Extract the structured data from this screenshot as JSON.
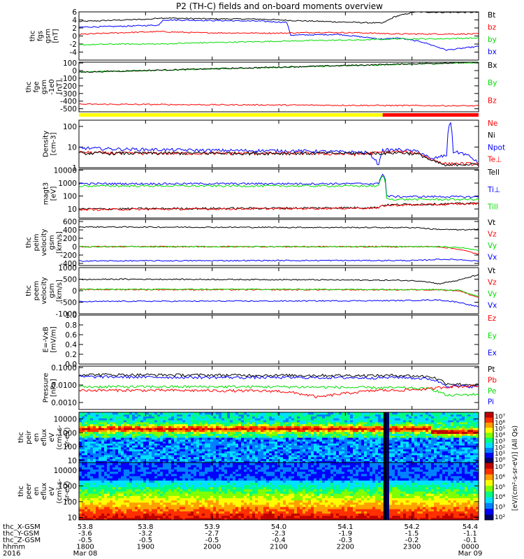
{
  "title": "P2 (TH-C) fields and on-board moments overview",
  "colors": {
    "black": "#000000",
    "red": "#ff0000",
    "green": "#00dd00",
    "blue": "#0000ff",
    "bar_yellow": "#ffff00",
    "bar_red": "#ff0000"
  },
  "chart_data": [
    {
      "id": "p1",
      "type": "line",
      "ylabel": [
        "thc",
        "fgs",
        "gsm",
        "[nT]"
      ],
      "ylim": [
        -6,
        6
      ],
      "ticks": [
        "6",
        "4",
        "2",
        "0",
        "-2",
        "-4"
      ],
      "legend": [
        {
          "label": "Bt",
          "color": "#000000"
        },
        {
          "label": "bz",
          "color": "#ff0000"
        },
        {
          "label": "by",
          "color": "#00dd00"
        },
        {
          "label": "bx",
          "color": "#0000ff"
        }
      ],
      "series": [
        {
          "color": "#000000",
          "x": [
            0,
            0.08,
            0.18,
            0.2,
            0.3,
            0.45,
            0.55,
            0.65,
            0.76,
            0.79,
            0.84,
            0.9,
            1
          ],
          "y": [
            3.6,
            3.9,
            4.2,
            4.5,
            4.3,
            4.2,
            3.8,
            3.5,
            3.2,
            4.8,
            6.0,
            5.9,
            5.9
          ]
        },
        {
          "color": "#0000ff",
          "x": [
            0,
            0.1,
            0.2,
            0.21,
            0.3,
            0.45,
            0.52,
            0.53,
            0.65,
            0.76,
            0.8,
            0.86,
            0.92,
            1
          ],
          "y": [
            2.2,
            2.4,
            2.7,
            4.0,
            3.9,
            3.7,
            3.4,
            0.2,
            0.4,
            -0.8,
            -0.5,
            -1.5,
            -3.5,
            -2.6
          ]
        },
        {
          "color": "#ff0000",
          "x": [
            0,
            0.1,
            0.2,
            0.3,
            0.5,
            0.6,
            0.7,
            0.8,
            0.9,
            1
          ],
          "y": [
            0.4,
            0.8,
            1.1,
            0.8,
            0.7,
            0.9,
            0.8,
            0.5,
            0.5,
            0.5
          ]
        },
        {
          "color": "#00dd00",
          "x": [
            0,
            0.1,
            0.2,
            0.3,
            0.4,
            0.5,
            0.6,
            0.7,
            0.8,
            0.9,
            1
          ],
          "y": [
            -2.2,
            -2.0,
            -2.0,
            -1.7,
            -1.5,
            -1.3,
            -1.1,
            -1.0,
            -0.7,
            -0.7,
            -0.5
          ]
        }
      ]
    },
    {
      "id": "p2",
      "type": "line",
      "ylabel": [
        "thc",
        "fge",
        "gsm",
        "-1e0",
        "[nT]"
      ],
      "ylim": [
        -540,
        110
      ],
      "ticks": [
        "100",
        "0",
        "-100",
        "-200",
        "-300",
        "-400",
        "-500"
      ],
      "legend": [
        {
          "label": "Bx",
          "color": "#000000"
        },
        {
          "label": "By",
          "color": "#00dd00"
        },
        {
          "label": "Bz",
          "color": "#ff0000"
        }
      ],
      "series": [
        {
          "color": "#00dd00",
          "x": [
            0,
            1
          ],
          "y": [
            -20,
            105
          ]
        },
        {
          "color": "#000000",
          "x": [
            0,
            1
          ],
          "y": [
            -20,
            110
          ]
        },
        {
          "color": "#ff0000",
          "x": [
            0,
            1
          ],
          "y": [
            -440,
            -462
          ]
        }
      ]
    },
    {
      "id": "bar",
      "type": "bar",
      "segments": [
        {
          "from": 0,
          "to": 0.76,
          "color": "#ffff00"
        },
        {
          "from": 0.76,
          "to": 1,
          "color": "#ff0000"
        }
      ]
    },
    {
      "id": "p3",
      "type": "line",
      "log": true,
      "ylabel": [
        "Density",
        "[cm-3]"
      ],
      "ylim": [
        1,
        200
      ],
      "ticks": [
        "100",
        "10",
        "1"
      ],
      "legend": [
        {
          "label": "Ne",
          "color": "#ff0000"
        },
        {
          "label": "Ni",
          "color": "#000000"
        },
        {
          "label": "Npot",
          "color": "#0000ff"
        },
        {
          "label": "Te⊥",
          "color": "#ff0000"
        }
      ],
      "series": [
        {
          "color": "#0000ff",
          "x": [
            0,
            0.1,
            0.3,
            0.55,
            0.72,
            0.75,
            0.76,
            0.8,
            0.85,
            0.88,
            0.92,
            0.93,
            0.935,
            0.96,
            1
          ],
          "y": [
            9,
            8,
            7,
            6.5,
            5.5,
            1.2,
            7,
            7.5,
            6,
            2.5,
            4,
            150,
            6,
            5,
            1.5
          ]
        },
        {
          "color": "#ff0000",
          "x": [
            0,
            0.1,
            0.3,
            0.55,
            0.7,
            0.76,
            0.8,
            0.85,
            0.88,
            0.92,
            0.95,
            1
          ],
          "y": [
            5.5,
            5,
            5,
            5,
            4.5,
            5.5,
            6,
            5,
            2.5,
            1.5,
            1.6,
            1.5
          ]
        },
        {
          "color": "#000000",
          "x": [
            0.76,
            0.8,
            0.85,
            0.88,
            0.92,
            0.95,
            1
          ],
          "y": [
            5,
            5.5,
            4.5,
            2.2,
            1.2,
            1.5,
            1.4
          ]
        }
      ]
    },
    {
      "id": "p4",
      "type": "line",
      "log": true,
      "ylabel": [
        "magt3",
        "[eV]"
      ],
      "ylim": [
        2,
        12000
      ],
      "ticks": [
        "10000",
        "1000",
        "100",
        "10"
      ],
      "legend": [
        {
          "label": "Tell",
          "color": "#000000"
        },
        {
          "label": "Ti⊥",
          "color": "#0000ff"
        },
        {
          "label": "Till",
          "color": "#00dd00"
        }
      ],
      "series": [
        {
          "color": "#0000ff",
          "x": [
            0,
            0.75,
            0.76,
            0.77,
            0.8,
            0.9,
            1
          ],
          "y": [
            900,
            900,
            5000,
            100,
            90,
            90,
            85
          ]
        },
        {
          "color": "#00dd00",
          "x": [
            0,
            0.75,
            0.76,
            0.77,
            0.8,
            0.9,
            1
          ],
          "y": [
            600,
            600,
            3500,
            60,
            55,
            55,
            55
          ]
        },
        {
          "color": "#000000",
          "x": [
            0,
            0.3,
            0.6,
            0.75,
            0.76,
            0.8,
            0.9,
            1
          ],
          "y": [
            10,
            11,
            12,
            13,
            20,
            22,
            24,
            28
          ]
        },
        {
          "color": "#ff0000",
          "x": [
            0,
            0.3,
            0.6,
            0.75,
            0.76,
            0.8,
            0.9,
            1
          ],
          "y": [
            9,
            10,
            11,
            12,
            18,
            20,
            22,
            26
          ]
        }
      ]
    },
    {
      "id": "p5",
      "type": "line",
      "ylabel": [
        "thc",
        "peim",
        "velocity",
        "gsm",
        "[km/s]"
      ],
      "ylim": [
        -450,
        650
      ],
      "ticks": [
        "600",
        "400",
        "200",
        "0",
        "-200",
        "-400"
      ],
      "legend": [
        {
          "label": "Vt",
          "color": "#000000"
        },
        {
          "label": "Vz",
          "color": "#ff0000"
        },
        {
          "label": "Vy",
          "color": "#00dd00"
        },
        {
          "label": "Vx",
          "color": "#0000ff"
        }
      ],
      "series": [
        {
          "color": "#000000",
          "x": [
            0,
            0.05,
            0.5,
            0.85,
            0.88,
            0.95,
            1
          ],
          "y": [
            470,
            470,
            460,
            455,
            420,
            400,
            410
          ]
        },
        {
          "color": "#0000ff",
          "x": [
            0,
            0.05,
            0.5,
            0.85,
            0.9,
            0.95,
            1
          ],
          "y": [
            -340,
            -340,
            -330,
            -330,
            -300,
            -310,
            -340
          ]
        },
        {
          "color": "#ff0000",
          "x": [
            0,
            0.5,
            0.9,
            0.95,
            1
          ],
          "y": [
            0,
            0,
            0,
            -60,
            -180
          ]
        },
        {
          "color": "#00dd00",
          "x": [
            0,
            0.5,
            0.9,
            0.95,
            1
          ],
          "y": [
            0,
            0,
            0,
            -20,
            -80
          ]
        }
      ]
    },
    {
      "id": "p6",
      "type": "line",
      "ylabel": [
        "thc",
        "peem",
        "velocity",
        "gsm",
        "[km/s]"
      ],
      "ylim": [
        -1000,
        1000
      ],
      "ticks": [
        "1000",
        "500",
        "0",
        "-500",
        "-1000"
      ],
      "legend": [
        {
          "label": "Vt",
          "color": "#000000"
        },
        {
          "label": "Vz",
          "color": "#ff0000"
        },
        {
          "label": "Vy",
          "color": "#00dd00"
        },
        {
          "label": "Vx",
          "color": "#0000ff"
        }
      ],
      "series": [
        {
          "color": "#000000",
          "x": [
            0,
            0.1,
            0.5,
            0.8,
            0.86,
            0.9,
            0.95,
            1
          ],
          "y": [
            480,
            500,
            480,
            450,
            420,
            300,
            450,
            700
          ]
        },
        {
          "color": "#0000ff",
          "x": [
            0,
            0.1,
            0.5,
            0.8,
            0.9,
            0.95,
            1
          ],
          "y": [
            -480,
            -460,
            -450,
            -430,
            -400,
            -500,
            -700
          ]
        },
        {
          "color": "#ff0000",
          "x": [
            0,
            0.5,
            0.9,
            0.95,
            1
          ],
          "y": [
            50,
            40,
            40,
            0,
            -300
          ]
        },
        {
          "color": "#00dd00",
          "x": [
            0,
            0.5,
            0.9,
            0.95,
            1
          ],
          "y": [
            60,
            60,
            50,
            20,
            -250
          ]
        }
      ]
    },
    {
      "id": "p7",
      "type": "line",
      "ylabel": [
        "E=-VxB",
        "[mV/m]"
      ],
      "ylim": [
        0,
        1
      ],
      "ticks": [
        "1.0",
        "0.8",
        "0.6",
        "0.4",
        "0.2",
        "0.0"
      ],
      "legend": [
        {
          "label": "Ez",
          "color": "#ff0000"
        },
        {
          "label": "Ey",
          "color": "#00dd00"
        },
        {
          "label": "Ex",
          "color": "#0000ff"
        }
      ],
      "series": []
    },
    {
      "id": "p8",
      "type": "line",
      "log": true,
      "ylabel": [
        "Pressure",
        "[nPa]"
      ],
      "ylim": [
        0.0004,
        0.12
      ],
      "ticks": [
        "0.1000",
        "0.0100",
        "0.0010"
      ],
      "legend": [
        {
          "label": "Pt",
          "color": "#000000"
        },
        {
          "label": "Pb",
          "color": "#ff0000"
        },
        {
          "label": "Pe",
          "color": "#00dd00"
        },
        {
          "label": "Pi",
          "color": "#0000ff"
        }
      ],
      "series": [
        {
          "color": "#000000",
          "x": [
            0,
            0.2,
            0.5,
            0.75,
            0.8,
            0.88,
            0.92,
            1
          ],
          "y": [
            0.04,
            0.038,
            0.036,
            0.035,
            0.036,
            0.03,
            0.012,
            0.01
          ]
        },
        {
          "color": "#0000ff",
          "x": [
            0,
            0.2,
            0.5,
            0.75,
            0.8,
            0.88,
            0.92,
            1
          ],
          "y": [
            0.03,
            0.028,
            0.027,
            0.026,
            0.028,
            0.022,
            0.009,
            0.008
          ]
        },
        {
          "color": "#00dd00",
          "x": [
            0,
            0.2,
            0.5,
            0.75,
            0.8,
            0.88,
            0.92,
            1
          ],
          "y": [
            0.008,
            0.008,
            0.008,
            0.007,
            0.007,
            0.006,
            0.0025,
            0.003
          ]
        },
        {
          "color": "#ff0000",
          "x": [
            0,
            0.2,
            0.5,
            0.6,
            0.75,
            0.8,
            0.88,
            0.92,
            1
          ],
          "y": [
            0.005,
            0.005,
            0.0045,
            0.002,
            0.005,
            0.005,
            0.006,
            0.008,
            0.009
          ]
        }
      ]
    },
    {
      "id": "s1",
      "type": "heatmap",
      "ylabel": [
        "thc",
        "peir",
        "en",
        "eflux",
        "eV",
        "(cm²-s-",
        "sr-eV)"
      ],
      "log": true,
      "ylim": [
        7,
        30000
      ],
      "ticks": [
        "10000",
        "1000",
        "100",
        "10"
      ],
      "profile": "ion"
    },
    {
      "id": "s2",
      "type": "heatmap",
      "ylabel": [
        "thc",
        "peer",
        "en",
        "eflux",
        "eV",
        "(cm²-s-",
        "sr-eV)"
      ],
      "log": true,
      "ylim": [
        7,
        30000
      ],
      "ticks": [
        "10000",
        "1000",
        "100",
        "10"
      ],
      "profile": "electron"
    }
  ],
  "colorbar": {
    "ticks": [
      "10⁷",
      "10⁶",
      "10⁵",
      "10⁴",
      "10³",
      "10²",
      "10¹",
      "10⁰"
    ],
    "ticks2": [
      "10⁷",
      "10⁶",
      "10⁵",
      "10⁴",
      "10³",
      "10²"
    ],
    "label": "[eV/(cm²-s-sr-eV)] (All Qs)"
  },
  "xaxis": {
    "tick_labels": [
      [
        "53.8",
        "-3.6",
        "-0.5",
        "1800",
        "Mar 08"
      ],
      [
        "53.8",
        "-3.2",
        "-0.5",
        "1900",
        ""
      ],
      [
        "53.9",
        "-2.7",
        "-0.5",
        "2000",
        ""
      ],
      [
        "54.0",
        "-2.3",
        "-0.4",
        "2100",
        ""
      ],
      [
        "54.1",
        "-1.9",
        "-0.3",
        "2200",
        ""
      ],
      [
        "54.2",
        "-1.5",
        "-0.2",
        "2300",
        ""
      ],
      [
        "54.4",
        "-1.1",
        "-0.1",
        "0000",
        "Mar 09"
      ]
    ],
    "row_labels": [
      "thc_X-GSM",
      "thc_Y-GSM",
      "thc_Z-GSM",
      "hhmm",
      "2016"
    ]
  }
}
